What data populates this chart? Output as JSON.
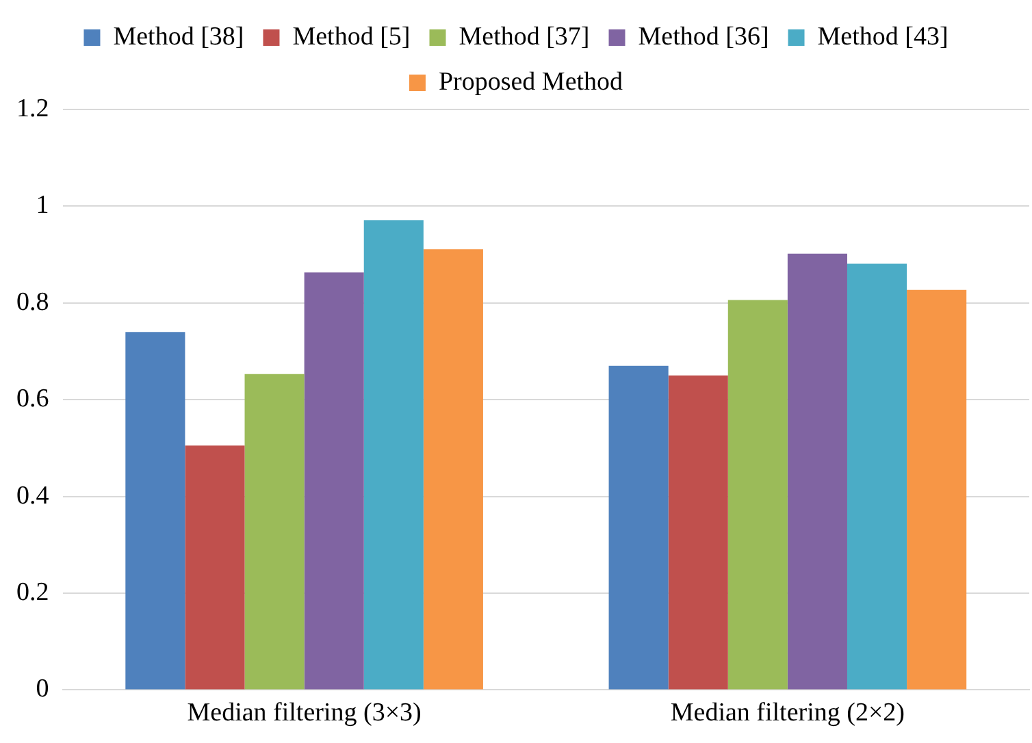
{
  "chart_data": {
    "type": "bar",
    "categories": [
      "Median filtering (3×3)",
      "Median filtering (2×2)"
    ],
    "series": [
      {
        "name": "Method [38]",
        "color": "#4f81bd",
        "values": [
          0.74,
          0.67
        ]
      },
      {
        "name": "Method [5]",
        "color": "#c0504d",
        "values": [
          0.505,
          0.65
        ]
      },
      {
        "name": "Method [37]",
        "color": "#9bbb59",
        "values": [
          0.653,
          0.806
        ]
      },
      {
        "name": "Method [36]",
        "color": "#8064a2",
        "values": [
          0.863,
          0.902
        ]
      },
      {
        "name": "Method [43]",
        "color": "#4bacc6",
        "values": [
          0.971,
          0.881
        ]
      },
      {
        "name": "Proposed Method",
        "color": "#f79646",
        "values": [
          0.911,
          0.827
        ]
      }
    ],
    "ylim": [
      0,
      1.2
    ],
    "yticks": [
      0,
      0.2,
      0.4,
      0.6,
      0.8,
      1,
      1.2
    ],
    "grid": "y",
    "legend": "top"
  }
}
